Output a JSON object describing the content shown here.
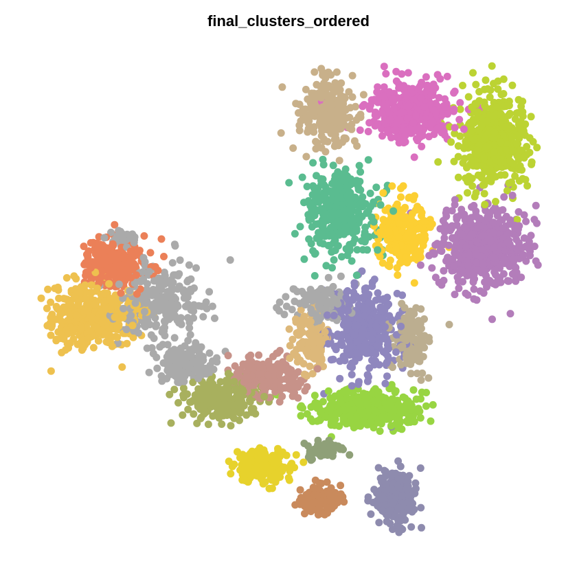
{
  "chart_data": {
    "type": "scatter",
    "title": "final_clusters_ordered",
    "xlabel": "",
    "ylabel": "",
    "axes_visible": false,
    "grid": false,
    "legend": "none",
    "clusters": [
      {
        "color": "#C8B08A",
        "center": [
          475,
          165
        ],
        "spread": [
          42,
          55
        ],
        "n": 260
      },
      {
        "color": "#DA6FBF",
        "center": [
          595,
          165
        ],
        "spread": [
          70,
          45
        ],
        "n": 420
      },
      {
        "color": "#BCD333",
        "center": [
          720,
          205
        ],
        "spread": [
          55,
          75
        ],
        "n": 460
      },
      {
        "color": "#5ABC90",
        "center": [
          495,
          305
        ],
        "spread": [
          55,
          75
        ],
        "n": 360
      },
      {
        "color": "#FCCF33",
        "center": [
          585,
          340
        ],
        "spread": [
          40,
          55
        ],
        "n": 240
      },
      {
        "color": "#B37DBA",
        "center": [
          705,
          360
        ],
        "spread": [
          70,
          65
        ],
        "n": 520
      },
      {
        "color": "#8F87BE",
        "center": [
          530,
          480
        ],
        "spread": [
          55,
          65
        ],
        "n": 340
      },
      {
        "color": "#BCAE90",
        "center": [
          600,
          495
        ],
        "spread": [
          28,
          55
        ],
        "n": 140
      },
      {
        "color": "#DDB87A",
        "center": [
          450,
          495
        ],
        "spread": [
          30,
          45
        ],
        "n": 120
      },
      {
        "color": "#C79289",
        "center": [
          390,
          550
        ],
        "spread": [
          55,
          35
        ],
        "n": 200
      },
      {
        "color": "#98D542",
        "center": [
          530,
          595
        ],
        "spread": [
          85,
          30
        ],
        "n": 380
      },
      {
        "color": "#8FA078",
        "center": [
          475,
          655
        ],
        "spread": [
          30,
          12
        ],
        "n": 70
      },
      {
        "color": "#EB8058",
        "center": [
          165,
          385
        ],
        "spread": [
          55,
          38
        ],
        "n": 230
      },
      {
        "color": "#EEC14F",
        "center": [
          135,
          460
        ],
        "spread": [
          68,
          50
        ],
        "n": 380
      },
      {
        "color": "#AAAAAA",
        "center": [
          235,
          440
        ],
        "spread": [
          70,
          60
        ],
        "n": 240
      },
      {
        "color": "#AAAAAA",
        "center": [
          270,
          530
        ],
        "spread": [
          45,
          30
        ],
        "n": 160
      },
      {
        "color": "#AAAAAA",
        "center": [
          460,
          440
        ],
        "spread": [
          55,
          30
        ],
        "n": 90
      },
      {
        "color": "#AAAAAA",
        "center": [
          180,
          345
        ],
        "spread": [
          22,
          14
        ],
        "n": 40
      },
      {
        "color": "#A8B05E",
        "center": [
          320,
          580
        ],
        "spread": [
          58,
          32
        ],
        "n": 240
      },
      {
        "color": "#E7D22C",
        "center": [
          385,
          680
        ],
        "spread": [
          45,
          28
        ],
        "n": 160
      },
      {
        "color": "#C98A5C",
        "center": [
          465,
          728
        ],
        "spread": [
          35,
          25
        ],
        "n": 130
      },
      {
        "color": "#8E8BAE",
        "center": [
          578,
          725
        ],
        "spread": [
          32,
          48
        ],
        "n": 200
      }
    ]
  }
}
